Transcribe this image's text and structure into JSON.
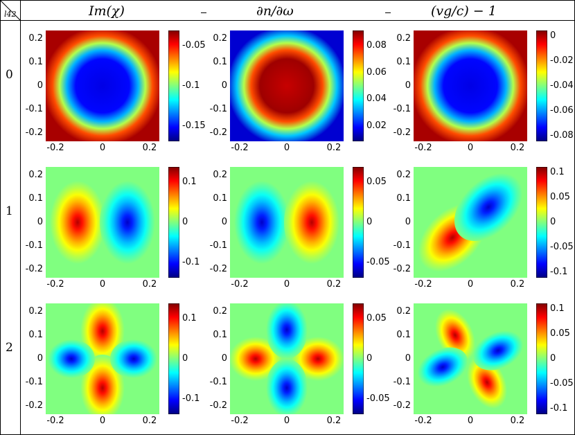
{
  "corner_label": "l42",
  "columns": [
    {
      "title": "Im(χ)"
    },
    {
      "title": "∂n/∂ω"
    },
    {
      "title": "(vg/c) − 1"
    }
  ],
  "rows": [
    {
      "label": "0"
    },
    {
      "label": "1"
    },
    {
      "label": "2"
    }
  ],
  "axes": {
    "xticks": [
      "-0.2",
      "0",
      "0.2"
    ],
    "yticks": [
      "0.2",
      "0.1",
      "0",
      "-0.1",
      "-0.2"
    ],
    "range": [
      -0.25,
      0.25
    ]
  },
  "colormap": "jet",
  "colorbars": [
    [
      {
        "ticks": [
          "-0.05",
          "-0.1",
          "-0.15"
        ]
      },
      {
        "ticks": [
          "0.08",
          "0.06",
          "0.04",
          "0.02"
        ]
      },
      {
        "ticks": [
          "0",
          "-0.02",
          "-0.04",
          "-0.06",
          "-0.08"
        ]
      }
    ],
    [
      {
        "ticks": [
          "0.1",
          "0",
          "-0.1"
        ]
      },
      {
        "ticks": [
          "0.05",
          "0",
          "-0.05"
        ]
      },
      {
        "ticks": [
          "0.1",
          "0.05",
          "0",
          "-0.05",
          "-0.1"
        ]
      }
    ],
    [
      {
        "ticks": [
          "0.1",
          "0",
          "-0.1"
        ]
      },
      {
        "ticks": [
          "0.05",
          "0",
          "-0.05"
        ]
      },
      {
        "ticks": [
          "0.1",
          "0.05",
          "0",
          "-0.05",
          "-0.1"
        ]
      }
    ]
  ],
  "chart_data": [
    {
      "type": "heatmap",
      "row": "0",
      "column": "Im(χ)",
      "pattern": "ring",
      "clim": [
        -0.17,
        0
      ],
      "xlim": [
        -0.25,
        0.25
      ],
      "ylim": [
        -0.25,
        0.25
      ]
    },
    {
      "type": "heatmap",
      "row": "0",
      "column": "∂n/∂ω",
      "pattern": "ring",
      "clim": [
        0,
        0.09
      ],
      "xlim": [
        -0.25,
        0.25
      ],
      "ylim": [
        -0.25,
        0.25
      ]
    },
    {
      "type": "heatmap",
      "row": "0",
      "column": "(vg/c) − 1",
      "pattern": "ring",
      "clim": [
        -0.08,
        0
      ],
      "xlim": [
        -0.25,
        0.25
      ],
      "ylim": [
        -0.25,
        0.25
      ]
    },
    {
      "type": "heatmap",
      "row": "1",
      "column": "Im(χ)",
      "pattern": "dipole-horizontal (left positive, right negative)",
      "clim": [
        -0.14,
        0.14
      ],
      "xlim": [
        -0.25,
        0.25
      ],
      "ylim": [
        -0.25,
        0.25
      ]
    },
    {
      "type": "heatmap",
      "row": "1",
      "column": "∂n/∂ω",
      "pattern": "dipole-horizontal (left negative, right positive)",
      "clim": [
        -0.08,
        0.08
      ],
      "xlim": [
        -0.25,
        0.25
      ],
      "ylim": [
        -0.25,
        0.25
      ]
    },
    {
      "type": "heatmap",
      "row": "1",
      "column": "(vg/c) − 1",
      "pattern": "dipole-diagonal (lower-left positive, upper-right negative)",
      "clim": [
        -0.1,
        0.13
      ],
      "xlim": [
        -0.25,
        0.25
      ],
      "ylim": [
        -0.25,
        0.25
      ]
    },
    {
      "type": "heatmap",
      "row": "2",
      "column": "Im(χ)",
      "pattern": "quadrupole (top/bottom positive, left/right negative)",
      "clim": [
        -0.14,
        0.14
      ],
      "xlim": [
        -0.25,
        0.25
      ],
      "ylim": [
        -0.25,
        0.25
      ]
    },
    {
      "type": "heatmap",
      "row": "2",
      "column": "∂n/∂ω",
      "pattern": "quadrupole (left/right positive, top/bottom negative)",
      "clim": [
        -0.08,
        0.08
      ],
      "xlim": [
        -0.25,
        0.25
      ],
      "ylim": [
        -0.25,
        0.25
      ]
    },
    {
      "type": "heatmap",
      "row": "2",
      "column": "(vg/c) − 1",
      "pattern": "quadrupole rotated (diagonal lobes)",
      "clim": [
        -0.1,
        0.13
      ],
      "xlim": [
        -0.25,
        0.25
      ],
      "ylim": [
        -0.25,
        0.25
      ]
    }
  ]
}
